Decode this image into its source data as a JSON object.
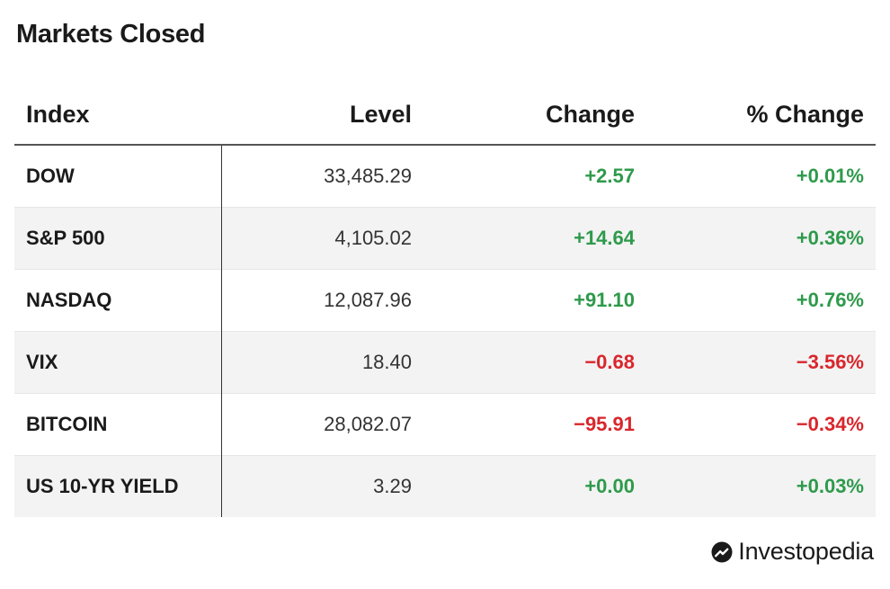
{
  "title": "Markets Closed",
  "table": {
    "headers": {
      "index": "Index",
      "level": "Level",
      "change": "Change",
      "pct_change": "% Change"
    },
    "rows": [
      {
        "index": "DOW",
        "level": "33,485.29",
        "change": "+2.57",
        "pct_change": "+0.01%",
        "direction": "up"
      },
      {
        "index": "S&P 500",
        "level": "4,105.02",
        "change": "+14.64",
        "pct_change": "+0.36%",
        "direction": "up"
      },
      {
        "index": "NASDAQ",
        "level": "12,087.96",
        "change": "+91.10",
        "pct_change": "+0.76%",
        "direction": "up"
      },
      {
        "index": "VIX",
        "level": "18.40",
        "change": "−0.68",
        "pct_change": "−3.56%",
        "direction": "down"
      },
      {
        "index": "BITCOIN",
        "level": "28,082.07",
        "change": "−95.91",
        "pct_change": "−0.34%",
        "direction": "down"
      },
      {
        "index": "US 10-YR YIELD",
        "level": "3.29",
        "change": "+0.00",
        "pct_change": "+0.03%",
        "direction": "up"
      }
    ]
  },
  "colors": {
    "positive": "#2e9a4b",
    "negative": "#d9262c"
  },
  "brand": {
    "name": "Investopedia",
    "icon": "investopedia-logo-icon"
  }
}
